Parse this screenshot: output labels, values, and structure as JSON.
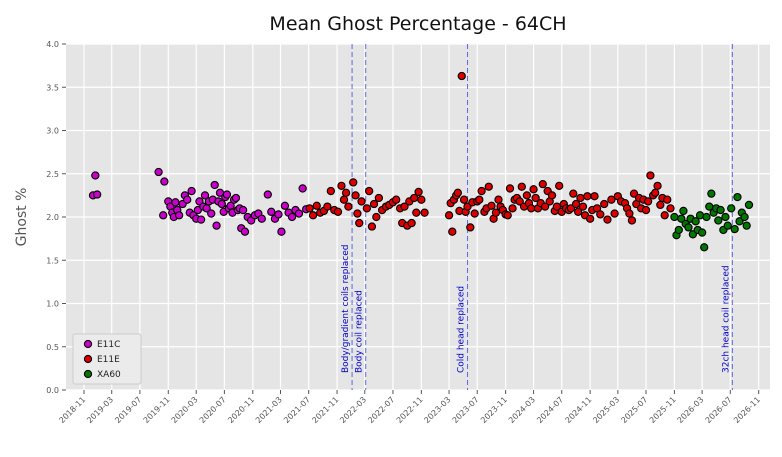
{
  "chart_data": {
    "type": "scatter",
    "title": "Mean Ghost Percentage - 64CH",
    "xlabel": "",
    "ylabel": "Ghost %",
    "ylim": [
      0,
      4
    ],
    "xlim": [
      "2018-08-15",
      "2026-12-20"
    ],
    "yticks": [
      "0.0",
      "0.5",
      "1.0",
      "1.5",
      "2.0",
      "2.5",
      "3.0",
      "3.5",
      "4.0"
    ],
    "xticks": [
      "2018-11",
      "2019-03",
      "2019-07",
      "2019-11",
      "2020-03",
      "2020-07",
      "2020-11",
      "2021-03",
      "2021-07",
      "2021-11",
      "2022-03",
      "2022-07",
      "2022-11",
      "2023-03",
      "2023-07",
      "2023-11",
      "2024-03",
      "2024-07",
      "2024-11",
      "2025-03",
      "2025-07",
      "2025-11",
      "2026-03",
      "2026-07",
      "2026-11"
    ],
    "grid": true,
    "legend_position": "lower-left",
    "annotations": [
      {
        "date": "2022-01-05",
        "text": "Body/gradient coils replaced",
        "color": "#0000cc"
      },
      {
        "date": "2022-03-05",
        "text": "Body coil replaced",
        "color": "#0000cc"
      },
      {
        "date": "2023-05-20",
        "text": "Cold head replaced",
        "color": "#0000cc"
      },
      {
        "date": "2026-07-10",
        "text": "32ch head coil replaced",
        "color": "#0000cc"
      }
    ],
    "series": [
      {
        "name": "E11C",
        "color": "#cc00cc",
        "points": [
          [
            "2018-12-10",
            2.25
          ],
          [
            "2018-12-20",
            2.48
          ],
          [
            "2018-12-28",
            2.26
          ],
          [
            "2019-09-20",
            2.52
          ],
          [
            "2019-10-10",
            2.02
          ],
          [
            "2019-10-15",
            2.41
          ],
          [
            "2019-11-01",
            2.18
          ],
          [
            "2019-11-10",
            2.12
          ],
          [
            "2019-11-18",
            2.05
          ],
          [
            "2019-11-25",
            2.0
          ],
          [
            "2019-12-02",
            2.17
          ],
          [
            "2019-12-10",
            2.08
          ],
          [
            "2019-12-18",
            2.02
          ],
          [
            "2020-01-02",
            2.15
          ],
          [
            "2020-01-12",
            2.25
          ],
          [
            "2020-01-22",
            2.2
          ],
          [
            "2020-02-02",
            2.05
          ],
          [
            "2020-02-10",
            2.3
          ],
          [
            "2020-02-18",
            2.02
          ],
          [
            "2020-03-01",
            1.98
          ],
          [
            "2020-03-08",
            2.08
          ],
          [
            "2020-03-15",
            2.18
          ],
          [
            "2020-03-22",
            1.97
          ],
          [
            "2020-04-01",
            2.12
          ],
          [
            "2020-04-08",
            2.25
          ],
          [
            "2020-04-15",
            2.1
          ],
          [
            "2020-04-25",
            2.18
          ],
          [
            "2020-05-05",
            2.04
          ],
          [
            "2020-05-12",
            2.2
          ],
          [
            "2020-05-20",
            2.37
          ],
          [
            "2020-05-28",
            1.9
          ],
          [
            "2020-06-05",
            2.18
          ],
          [
            "2020-06-12",
            2.28
          ],
          [
            "2020-06-20",
            2.15
          ],
          [
            "2020-06-28",
            2.06
          ],
          [
            "2020-07-05",
            2.23
          ],
          [
            "2020-07-12",
            2.26
          ],
          [
            "2020-07-20",
            2.1
          ],
          [
            "2020-07-28",
            2.13
          ],
          [
            "2020-08-05",
            2.05
          ],
          [
            "2020-08-12",
            2.2
          ],
          [
            "2020-08-20",
            2.22
          ],
          [
            "2020-08-28",
            2.08
          ],
          [
            "2020-09-05",
            2.1
          ],
          [
            "2020-09-12",
            1.87
          ],
          [
            "2020-09-20",
            2.08
          ],
          [
            "2020-09-28",
            1.83
          ],
          [
            "2020-10-10",
            2.0
          ],
          [
            "2020-10-25",
            1.96
          ],
          [
            "2020-11-10",
            2.02
          ],
          [
            "2020-11-25",
            2.04
          ],
          [
            "2020-12-10",
            1.98
          ],
          [
            "2021-01-05",
            2.26
          ],
          [
            "2021-01-20",
            2.06
          ],
          [
            "2021-02-05",
            1.98
          ],
          [
            "2021-02-20",
            2.03
          ],
          [
            "2021-03-05",
            1.83
          ],
          [
            "2021-03-20",
            2.13
          ],
          [
            "2021-04-05",
            2.05
          ],
          [
            "2021-04-20",
            2.0
          ],
          [
            "2021-05-05",
            2.08
          ],
          [
            "2021-05-20",
            2.04
          ],
          [
            "2021-06-05",
            2.33
          ],
          [
            "2021-06-20",
            2.09
          ]
        ]
      },
      {
        "name": "E11E",
        "color": "#dd0000",
        "points": [
          [
            "2021-07-05",
            2.1
          ],
          [
            "2021-07-20",
            2.02
          ],
          [
            "2021-08-05",
            2.13
          ],
          [
            "2021-08-20",
            2.05
          ],
          [
            "2021-09-05",
            2.07
          ],
          [
            "2021-09-20",
            2.12
          ],
          [
            "2021-10-05",
            2.3
          ],
          [
            "2021-10-20",
            2.08
          ],
          [
            "2021-11-05",
            2.06
          ],
          [
            "2021-11-20",
            2.36
          ],
          [
            "2021-12-01",
            2.2
          ],
          [
            "2021-12-10",
            2.28
          ],
          [
            "2021-12-20",
            2.12
          ],
          [
            "2022-01-10",
            2.4
          ],
          [
            "2022-01-20",
            2.25
          ],
          [
            "2022-01-28",
            2.04
          ],
          [
            "2022-02-05",
            1.93
          ],
          [
            "2022-02-15",
            2.18
          ],
          [
            "2022-03-10",
            2.1
          ],
          [
            "2022-03-20",
            2.3
          ],
          [
            "2022-04-01",
            1.89
          ],
          [
            "2022-04-10",
            2.15
          ],
          [
            "2022-04-20",
            2.0
          ],
          [
            "2022-05-01",
            2.22
          ],
          [
            "2022-05-15",
            2.08
          ],
          [
            "2022-06-01",
            2.12
          ],
          [
            "2022-06-15",
            2.14
          ],
          [
            "2022-07-01",
            2.17
          ],
          [
            "2022-07-15",
            2.2
          ],
          [
            "2022-08-01",
            2.1
          ],
          [
            "2022-08-10",
            1.93
          ],
          [
            "2022-08-20",
            2.12
          ],
          [
            "2022-09-01",
            1.9
          ],
          [
            "2022-09-10",
            2.18
          ],
          [
            "2022-09-20",
            1.93
          ],
          [
            "2022-10-01",
            2.22
          ],
          [
            "2022-10-10",
            2.05
          ],
          [
            "2022-10-20",
            2.29
          ],
          [
            "2022-11-01",
            2.2
          ],
          [
            "2022-11-15",
            2.05
          ],
          [
            "2023-03-01",
            2.02
          ],
          [
            "2023-03-08",
            2.16
          ],
          [
            "2023-03-15",
            1.83
          ],
          [
            "2023-03-22",
            2.2
          ],
          [
            "2023-04-01",
            2.25
          ],
          [
            "2023-04-08",
            2.28
          ],
          [
            "2023-04-15",
            2.07
          ],
          [
            "2023-04-25",
            3.63
          ],
          [
            "2023-05-05",
            2.2
          ],
          [
            "2023-05-12",
            2.06
          ],
          [
            "2023-05-20",
            2.12
          ],
          [
            "2023-06-01",
            1.88
          ],
          [
            "2023-06-10",
            2.17
          ],
          [
            "2023-06-20",
            2.04
          ],
          [
            "2023-07-01",
            2.18
          ],
          [
            "2023-07-10",
            2.2
          ],
          [
            "2023-07-20",
            2.3
          ],
          [
            "2023-08-01",
            2.06
          ],
          [
            "2023-08-10",
            2.1
          ],
          [
            "2023-08-20",
            2.35
          ],
          [
            "2023-09-01",
            2.13
          ],
          [
            "2023-09-10",
            1.98
          ],
          [
            "2023-09-20",
            2.05
          ],
          [
            "2023-10-01",
            2.2
          ],
          [
            "2023-10-10",
            2.12
          ],
          [
            "2023-10-20",
            2.08
          ],
          [
            "2023-11-01",
            2.03
          ],
          [
            "2023-11-10",
            2.02
          ],
          [
            "2023-11-20",
            2.33
          ],
          [
            "2023-12-01",
            2.1
          ],
          [
            "2023-12-10",
            2.2
          ],
          [
            "2023-12-20",
            2.22
          ],
          [
            "2024-01-01",
            2.18
          ],
          [
            "2024-01-10",
            2.35
          ],
          [
            "2024-01-20",
            2.12
          ],
          [
            "2024-02-01",
            2.25
          ],
          [
            "2024-02-10",
            2.16
          ],
          [
            "2024-02-20",
            2.1
          ],
          [
            "2024-03-01",
            2.32
          ],
          [
            "2024-03-10",
            2.22
          ],
          [
            "2024-03-20",
            2.1
          ],
          [
            "2024-04-01",
            2.16
          ],
          [
            "2024-04-10",
            2.38
          ],
          [
            "2024-04-20",
            2.12
          ],
          [
            "2024-05-01",
            2.3
          ],
          [
            "2024-05-10",
            2.18
          ],
          [
            "2024-05-20",
            2.25
          ],
          [
            "2024-06-01",
            2.07
          ],
          [
            "2024-06-10",
            2.12
          ],
          [
            "2024-06-20",
            2.36
          ],
          [
            "2024-07-01",
            2.06
          ],
          [
            "2024-07-10",
            2.15
          ],
          [
            "2024-07-20",
            2.1
          ],
          [
            "2024-08-01",
            2.08
          ],
          [
            "2024-08-10",
            2.1
          ],
          [
            "2024-08-20",
            2.27
          ],
          [
            "2024-09-01",
            2.15
          ],
          [
            "2024-09-10",
            2.06
          ],
          [
            "2024-09-20",
            2.22
          ],
          [
            "2024-10-01",
            2.12
          ],
          [
            "2024-10-10",
            2.02
          ],
          [
            "2024-10-20",
            2.24
          ],
          [
            "2024-11-01",
            1.98
          ],
          [
            "2024-11-10",
            2.08
          ],
          [
            "2024-11-20",
            2.24
          ],
          [
            "2024-12-01",
            2.1
          ],
          [
            "2024-12-15",
            2.03
          ],
          [
            "2025-01-01",
            2.15
          ],
          [
            "2025-01-15",
            1.97
          ],
          [
            "2025-02-01",
            2.2
          ],
          [
            "2025-02-15",
            2.04
          ],
          [
            "2025-03-01",
            2.24
          ],
          [
            "2025-03-15",
            2.18
          ],
          [
            "2025-04-01",
            2.16
          ],
          [
            "2025-04-10",
            2.1
          ],
          [
            "2025-04-20",
            2.04
          ],
          [
            "2025-05-01",
            1.96
          ],
          [
            "2025-05-10",
            2.27
          ],
          [
            "2025-05-20",
            2.15
          ],
          [
            "2025-06-01",
            2.22
          ],
          [
            "2025-06-10",
            2.1
          ],
          [
            "2025-06-20",
            2.2
          ],
          [
            "2025-07-01",
            2.08
          ],
          [
            "2025-07-10",
            2.18
          ],
          [
            "2025-07-20",
            2.48
          ],
          [
            "2025-08-01",
            2.25
          ],
          [
            "2025-08-10",
            2.28
          ],
          [
            "2025-08-20",
            2.36
          ],
          [
            "2025-09-01",
            2.14
          ],
          [
            "2025-09-10",
            2.22
          ],
          [
            "2025-09-20",
            2.02
          ],
          [
            "2025-10-01",
            2.2
          ],
          [
            "2025-10-15",
            2.1
          ]
        ]
      },
      {
        "name": "XA60",
        "color": "#007700",
        "points": [
          [
            "2025-11-01",
            2.0
          ],
          [
            "2025-11-10",
            1.79
          ],
          [
            "2025-11-20",
            1.85
          ],
          [
            "2025-12-01",
            1.98
          ],
          [
            "2025-12-10",
            2.07
          ],
          [
            "2025-12-20",
            1.92
          ],
          [
            "2026-01-01",
            1.88
          ],
          [
            "2026-01-10",
            1.98
          ],
          [
            "2026-01-20",
            1.8
          ],
          [
            "2026-02-01",
            1.95
          ],
          [
            "2026-02-10",
            1.85
          ],
          [
            "2026-02-20",
            2.02
          ],
          [
            "2026-03-01",
            1.82
          ],
          [
            "2026-03-10",
            1.65
          ],
          [
            "2026-03-20",
            2.0
          ],
          [
            "2026-04-01",
            2.12
          ],
          [
            "2026-04-10",
            2.27
          ],
          [
            "2026-04-20",
            2.05
          ],
          [
            "2026-05-01",
            2.1
          ],
          [
            "2026-05-10",
            1.96
          ],
          [
            "2026-05-20",
            2.08
          ],
          [
            "2026-06-01",
            1.85
          ],
          [
            "2026-06-10",
            2.0
          ],
          [
            "2026-06-20",
            1.9
          ],
          [
            "2026-07-05",
            2.1
          ],
          [
            "2026-07-20",
            1.86
          ],
          [
            "2026-08-01",
            2.23
          ],
          [
            "2026-08-10",
            1.95
          ],
          [
            "2026-08-20",
            2.05
          ],
          [
            "2026-09-01",
            2.0
          ],
          [
            "2026-09-10",
            1.9
          ],
          [
            "2026-09-20",
            2.14
          ]
        ]
      }
    ]
  }
}
